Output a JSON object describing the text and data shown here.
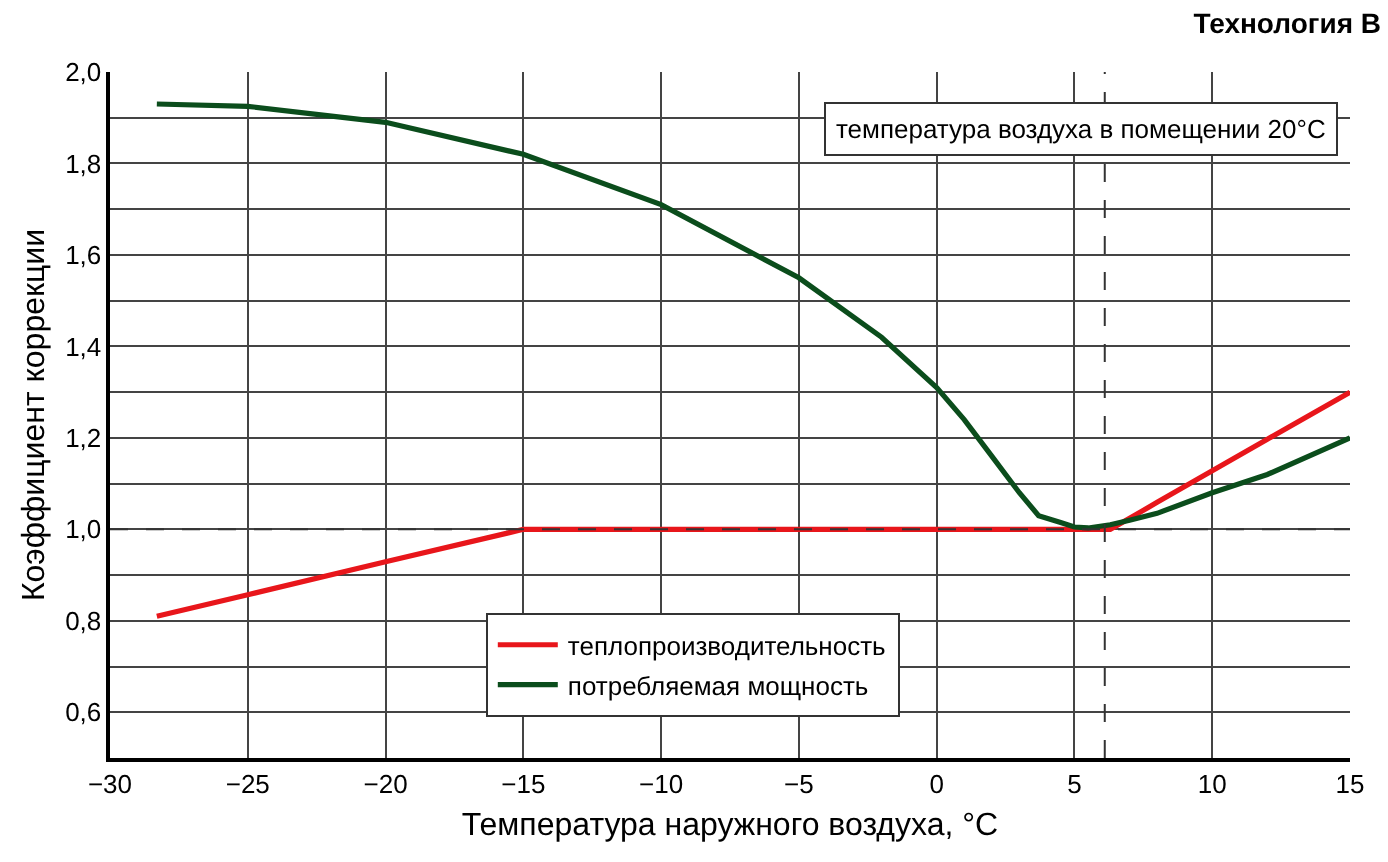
{
  "chart_data": {
    "type": "line",
    "title": "Технология B",
    "xlabel": "Температура наружного воздуха, °C",
    "ylabel": "Коэффициент коррекции",
    "x": [
      -28.3,
      -25,
      -20,
      -15,
      -10,
      -5,
      -2,
      0,
      1,
      2,
      3,
      3.7,
      4.5,
      5,
      5.5,
      6.3,
      7,
      8,
      10,
      12,
      15
    ],
    "series": [
      {
        "name": "теплопроизводительность",
        "color": "#e8161b",
        "values": [
          0.81,
          0.857,
          0.929,
          1.0,
          1.0,
          1.0,
          1.0,
          1.0,
          1.0,
          1.0,
          1.0,
          1.0,
          1.0,
          1.0,
          1.0,
          1.0,
          1.024,
          1.059,
          1.128,
          1.197,
          1.3
        ]
      },
      {
        "name": "потребляемая мощность",
        "color": "#0b4d1c",
        "values": [
          1.93,
          1.925,
          1.89,
          1.82,
          1.71,
          1.55,
          1.42,
          1.31,
          1.24,
          1.16,
          1.08,
          1.03,
          1.015,
          1.005,
          1.003,
          1.01,
          1.02,
          1.035,
          1.08,
          1.12,
          1.2
        ]
      }
    ],
    "xlim": [
      -30,
      15
    ],
    "ylim": [
      0.5,
      2.0
    ],
    "xticks": [
      {
        "value": -30,
        "label": "−30"
      },
      {
        "value": -25,
        "label": "−25"
      },
      {
        "value": -20,
        "label": "−20"
      },
      {
        "value": -15,
        "label": "−15"
      },
      {
        "value": -10,
        "label": "−10"
      },
      {
        "value": -5,
        "label": "−5"
      },
      0,
      5,
      10,
      15
    ],
    "yticks": [
      {
        "value": 0.6,
        "label": "0,6"
      },
      {
        "value": 0.7,
        "label": null
      },
      {
        "value": 0.8,
        "label": "0,8"
      },
      {
        "value": 0.9,
        "label": null
      },
      {
        "value": 1.0,
        "label": "1,0"
      },
      {
        "value": 1.1,
        "label": null
      },
      {
        "value": 1.2,
        "label": "1,2"
      },
      {
        "value": 1.3,
        "label": null
      },
      {
        "value": 1.4,
        "label": "1,4"
      },
      {
        "value": 1.5,
        "label": null
      },
      {
        "value": 1.6,
        "label": "1,6"
      },
      {
        "value": 1.7,
        "label": null
      },
      {
        "value": 1.8,
        "label": "1,8"
      },
      {
        "value": 1.9,
        "label": null
      },
      {
        "value": 2.0,
        "label": "2,0"
      }
    ],
    "grid": true,
    "legend": "bottom",
    "marker": "none",
    "line_style": "solid",
    "ref_lines": [
      {
        "axis": "y",
        "value": 1.0,
        "label": null,
        "color": "#333333",
        "line_style": "dashed"
      },
      {
        "axis": "x",
        "value": 6.1,
        "label": null,
        "color": "#333333",
        "line_style": "dashed"
      }
    ],
    "annotations": [
      "температура воздуха в помещении 20°C"
    ]
  }
}
